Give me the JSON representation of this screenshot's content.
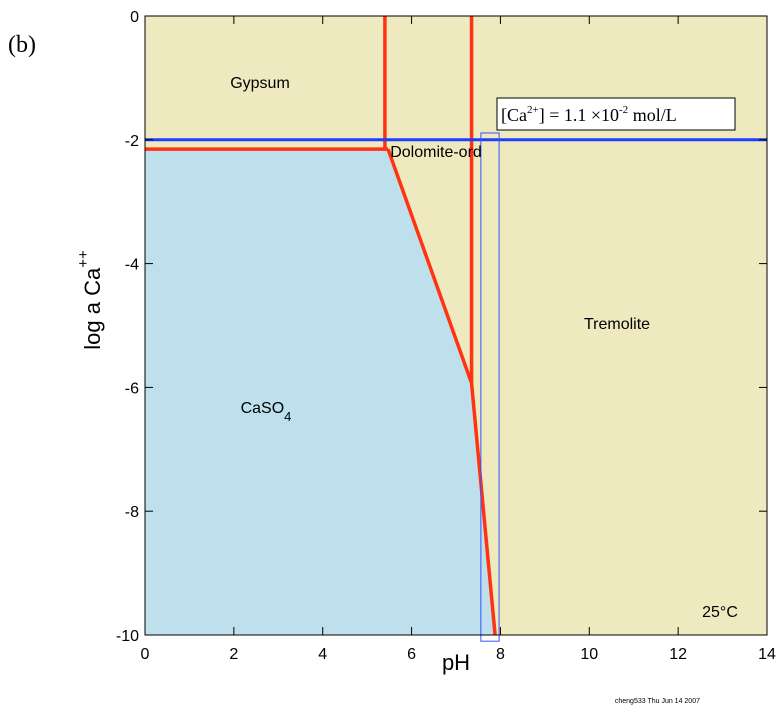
{
  "chart_data": {
    "type": "phase-diagram",
    "panel_label": "(b)",
    "xlabel": "pH",
    "ylabel": {
      "main": "log a Ca",
      "sup": "++"
    },
    "xlim": [
      0,
      14
    ],
    "ylim": [
      -10,
      0
    ],
    "xticks": [
      0,
      2,
      4,
      6,
      8,
      10,
      12,
      14
    ],
    "yticks": [
      -10,
      -8,
      -6,
      -4,
      -2,
      0
    ],
    "regions": [
      {
        "name": "Gypsum",
        "color": "#efe9bf",
        "x": [
          0,
          5.4,
          5.4,
          0
        ],
        "y": [
          0,
          0,
          -2.15,
          -2.15
        ]
      },
      {
        "name": "Dolomite-ord",
        "color": "#efe9bf",
        "x": [
          5.4,
          7.35,
          7.35,
          5.47,
          5.4
        ],
        "y": [
          0,
          0,
          -5.93,
          -2.15,
          -2.15
        ]
      },
      {
        "name": "Tremolite",
        "color": "#efe9bf",
        "x": [
          7.35,
          14,
          14,
          7.88,
          7.35
        ],
        "y": [
          0,
          0,
          -10,
          -10,
          -5.93
        ]
      },
      {
        "name": "CaSO",
        "sub": "4",
        "color": "#bde0ec",
        "x": [
          0,
          5.47,
          7.35,
          7.88,
          0
        ],
        "y": [
          -2.15,
          -2.15,
          -5.93,
          -10,
          -10
        ]
      }
    ],
    "boundaries": {
      "color": "#ff3311",
      "lines": [
        {
          "x": [
            5.4,
            5.4
          ],
          "y": [
            0,
            -2.15
          ]
        },
        {
          "x": [
            0,
            5.47
          ],
          "y": [
            -2.15,
            -2.15
          ]
        },
        {
          "x": [
            7.35,
            7.35
          ],
          "y": [
            0,
            -5.93
          ]
        },
        {
          "x": [
            5.47,
            7.35,
            7.88
          ],
          "y": [
            -2.15,
            -5.93,
            -10
          ]
        }
      ]
    },
    "reference_line": {
      "y": -2,
      "color": "#1f3fff"
    },
    "highlight_box": {
      "x": [
        7.56,
        7.97
      ],
      "y": [
        -1.89,
        -10.1
      ],
      "color": "#3355ff"
    },
    "annotation": [
      "[Ca",
      "2+",
      "] = 1.1  ×10",
      "-2",
      " mol/L"
    ],
    "temperature": "25°C",
    "footer": "cheng533 Thu Jun 14 2007"
  }
}
